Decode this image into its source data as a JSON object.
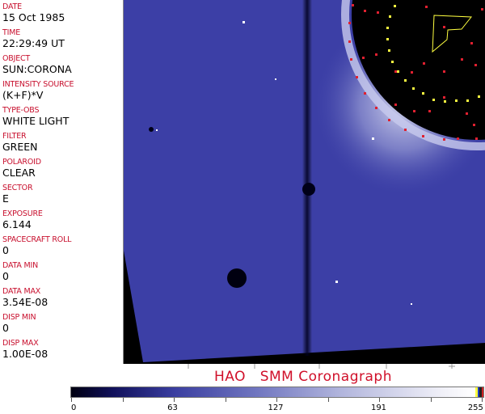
{
  "header_fields": [
    {
      "label": "DATE",
      "value": "15 Oct 1985"
    },
    {
      "label": "TIME",
      "value": "22:29:49 UT"
    },
    {
      "label": "OBJECT",
      "value": "SUN:CORONA"
    },
    {
      "label": "INTENSITY SOURCE",
      "value": "(K+F)*V"
    },
    {
      "label": "TYPE-OBS",
      "value": "WHITE LIGHT"
    },
    {
      "label": "FILTER",
      "value": "GREEN"
    },
    {
      "label": "POLAROID",
      "value": "CLEAR"
    },
    {
      "label": "SECTOR",
      "value": "E"
    },
    {
      "label": "EXPOSURE",
      "value": "6.144"
    },
    {
      "label": "SPACECRAFT ROLL",
      "value": "0"
    },
    {
      "label": "DATA MIN",
      "value": "0"
    },
    {
      "label": "DATA MAX",
      "value": "3.54E-08"
    },
    {
      "label": "DISP MIN",
      "value": "0"
    },
    {
      "label": "DISP MAX",
      "value": "1.00E-08"
    }
  ],
  "title": "HAO   SMM Coronagraph",
  "colorbar": {
    "min": 0,
    "max": 255,
    "tick_labels": [
      "0",
      "63",
      "127",
      "191",
      "255"
    ],
    "colors": {
      "low": "#000010",
      "mid": "#7076c0",
      "high": "#ffffff"
    },
    "overlay_colors": [
      "#ffff40",
      "#2040c0",
      "#202020",
      "#d02020"
    ]
  },
  "colors": {
    "label": "#c8102e",
    "corona": "#3a3ea0",
    "overlay_yellow": "#ffff40",
    "overlay_red": "#e02030"
  }
}
